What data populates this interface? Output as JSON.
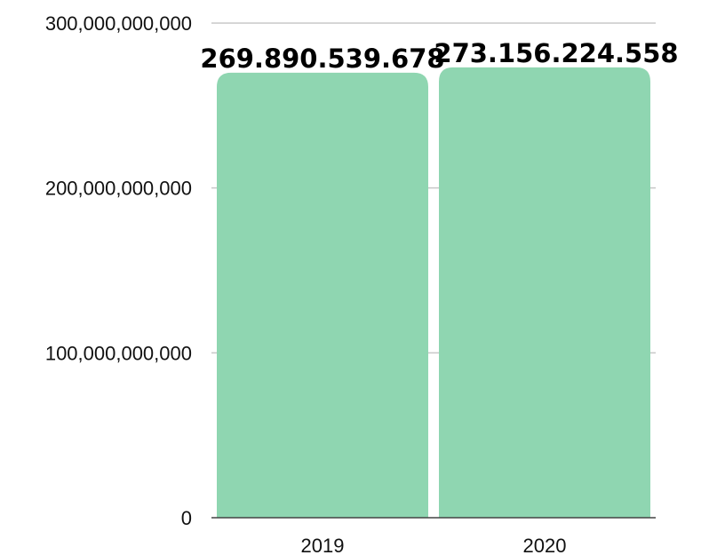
{
  "chart_data": {
    "type": "bar",
    "title": "",
    "xlabel": "",
    "ylabel": "",
    "categories": [
      "2019",
      "2020"
    ],
    "values": [
      269890539678,
      273156224558
    ],
    "value_labels": [
      "269.890.539.678",
      "273.156.224.558"
    ],
    "ylim": [
      0,
      300000000000
    ],
    "yticks": [
      0,
      100000000000,
      200000000000,
      300000000000
    ],
    "ytick_labels": [
      "0",
      "100,000,000,000",
      "200,000,000,000",
      "300,000,000,000"
    ],
    "grid": true,
    "bar_color": "#8fd6b1"
  }
}
